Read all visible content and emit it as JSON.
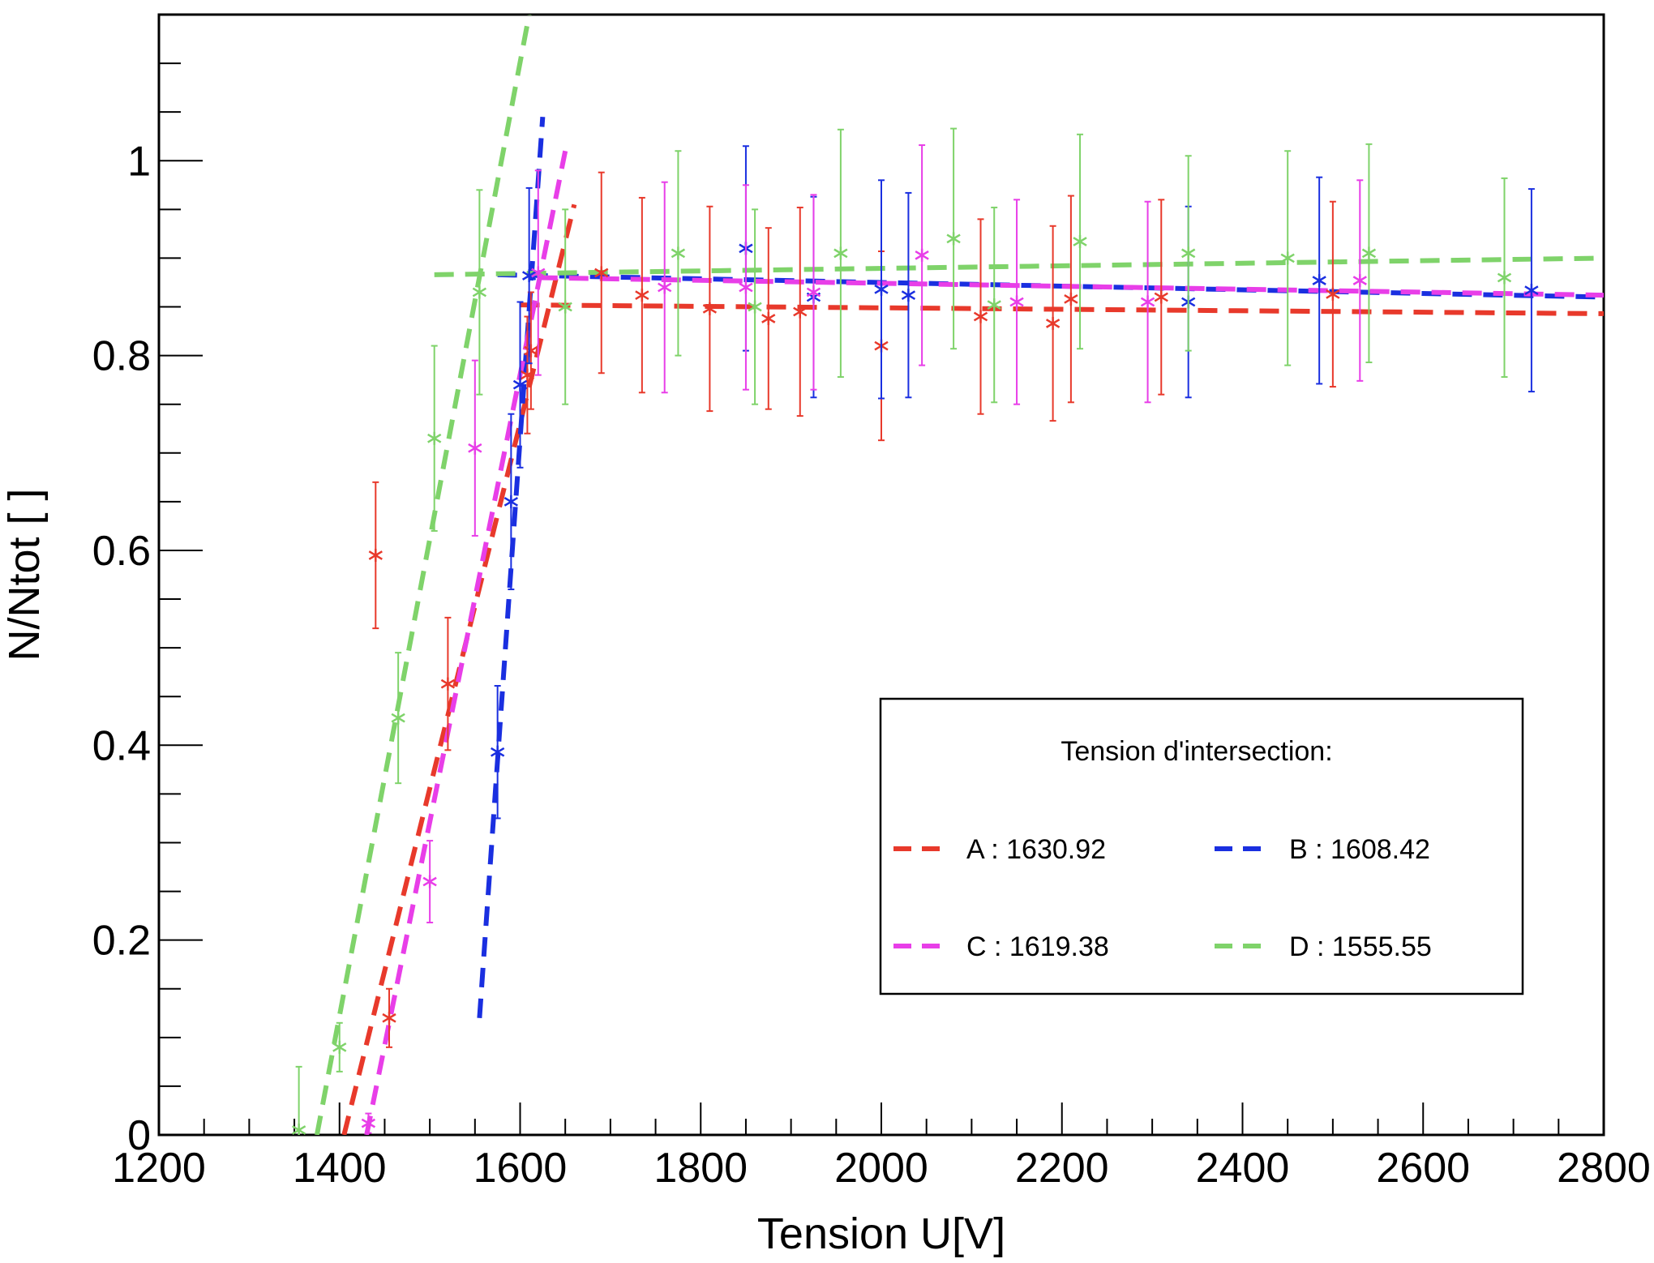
{
  "chart_data": {
    "type": "scatter",
    "title": "",
    "xlabel": "Tension U[V]",
    "ylabel": "N/Ntot [ ]",
    "xlim": [
      1200,
      2800
    ],
    "ylim": [
      0,
      1.15
    ],
    "x_ticks": [
      "1200",
      "1400",
      "1600",
      "1800",
      "2000",
      "2200",
      "2400",
      "2600",
      "2800"
    ],
    "y_ticks": [
      "0",
      "0.2",
      "0.4",
      "0.6",
      "0.8",
      "1"
    ],
    "grid": false,
    "legend": {
      "placement": "bottom-right",
      "title": "Tension d'intersection:",
      "entries": [
        {
          "label": "A : 1630.92",
          "color": "#e8392b"
        },
        {
          "label": "B : 1608.42",
          "color": "#1a2fe0"
        },
        {
          "label": "C : 1619.38",
          "color": "#e83ee8"
        },
        {
          "label": "D : 1555.55",
          "color": "#7fd36a"
        }
      ]
    },
    "series": [
      {
        "id": "A",
        "color": "#e8392b",
        "points": [
          {
            "x": 1440,
            "y": 0.595,
            "err": 0.075
          },
          {
            "x": 1455,
            "y": 0.12,
            "err": 0.03
          },
          {
            "x": 1520,
            "y": 0.463,
            "err": 0.068
          },
          {
            "x": 1608,
            "y": 0.78,
            "err": 0.06
          },
          {
            "x": 1612,
            "y": 0.805,
            "err": 0.06
          },
          {
            "x": 1690,
            "y": 0.885,
            "err": 0.103
          },
          {
            "x": 1735,
            "y": 0.862,
            "err": 0.1
          },
          {
            "x": 1810,
            "y": 0.848,
            "err": 0.105
          },
          {
            "x": 1875,
            "y": 0.838,
            "err": 0.093
          },
          {
            "x": 1910,
            "y": 0.845,
            "err": 0.107
          },
          {
            "x": 2000,
            "y": 0.81,
            "err": 0.097
          },
          {
            "x": 2110,
            "y": 0.84,
            "err": 0.1
          },
          {
            "x": 2190,
            "y": 0.833,
            "err": 0.1
          },
          {
            "x": 2210,
            "y": 0.858,
            "err": 0.106
          },
          {
            "x": 2310,
            "y": 0.86,
            "err": 0.1
          },
          {
            "x": 2500,
            "y": 0.863,
            "err": 0.095
          }
        ],
        "fit_rise": {
          "x": [
            1405,
            1660
          ],
          "y": [
            0.0,
            0.955
          ]
        },
        "fit_plateau": {
          "x": [
            1600,
            2800
          ],
          "y": [
            0.852,
            0.843
          ]
        }
      },
      {
        "id": "B",
        "color": "#1a2fe0",
        "points": [
          {
            "x": 1575,
            "y": 0.393,
            "err": 0.068
          },
          {
            "x": 1590,
            "y": 0.65,
            "err": 0.09
          },
          {
            "x": 1600,
            "y": 0.77,
            "err": 0.085
          },
          {
            "x": 1610,
            "y": 0.882,
            "err": 0.09
          },
          {
            "x": 1850,
            "y": 0.91,
            "err": 0.105
          },
          {
            "x": 1925,
            "y": 0.86,
            "err": 0.103
          },
          {
            "x": 2000,
            "y": 0.868,
            "err": 0.112
          },
          {
            "x": 2030,
            "y": 0.862,
            "err": 0.105
          },
          {
            "x": 2340,
            "y": 0.855,
            "err": 0.098
          },
          {
            "x": 2485,
            "y": 0.877,
            "err": 0.106
          },
          {
            "x": 2720,
            "y": 0.867,
            "err": 0.104
          }
        ],
        "fit_rise": {
          "x": [
            1555,
            1625
          ],
          "y": [
            0.12,
            1.045
          ]
        },
        "fit_plateau": {
          "x": [
            1575,
            2800
          ],
          "y": [
            0.883,
            0.86
          ]
        }
      },
      {
        "id": "C",
        "color": "#e83ee8",
        "points": [
          {
            "x": 1432,
            "y": 0.012,
            "err": 0.01
          },
          {
            "x": 1500,
            "y": 0.26,
            "err": 0.042
          },
          {
            "x": 1550,
            "y": 0.705,
            "err": 0.09
          },
          {
            "x": 1620,
            "y": 0.885,
            "err": 0.105
          },
          {
            "x": 1760,
            "y": 0.87,
            "err": 0.108
          },
          {
            "x": 1850,
            "y": 0.87,
            "err": 0.105
          },
          {
            "x": 1925,
            "y": 0.865,
            "err": 0.1
          },
          {
            "x": 2045,
            "y": 0.903,
            "err": 0.113
          },
          {
            "x": 2150,
            "y": 0.855,
            "err": 0.105
          },
          {
            "x": 2295,
            "y": 0.855,
            "err": 0.103
          },
          {
            "x": 2530,
            "y": 0.877,
            "err": 0.103
          }
        ],
        "fit_rise": {
          "x": [
            1430,
            1650
          ],
          "y": [
            0.0,
            1.01
          ]
        },
        "fit_plateau": {
          "x": [
            1620,
            2800
          ],
          "y": [
            0.88,
            0.862
          ]
        }
      },
      {
        "id": "D",
        "color": "#7fd36a",
        "points": [
          {
            "x": 1355,
            "y": 0.005,
            "err": 0.065
          },
          {
            "x": 1400,
            "y": 0.09,
            "err": 0.025
          },
          {
            "x": 1465,
            "y": 0.428,
            "err": 0.067
          },
          {
            "x": 1505,
            "y": 0.715,
            "err": 0.095
          },
          {
            "x": 1555,
            "y": 0.865,
            "err": 0.105
          },
          {
            "x": 1650,
            "y": 0.85,
            "err": 0.1
          },
          {
            "x": 1775,
            "y": 0.905,
            "err": 0.105
          },
          {
            "x": 1860,
            "y": 0.85,
            "err": 0.1
          },
          {
            "x": 1955,
            "y": 0.905,
            "err": 0.127
          },
          {
            "x": 2080,
            "y": 0.92,
            "err": 0.113
          },
          {
            "x": 2125,
            "y": 0.852,
            "err": 0.1
          },
          {
            "x": 2220,
            "y": 0.917,
            "err": 0.11
          },
          {
            "x": 2340,
            "y": 0.905,
            "err": 0.1
          },
          {
            "x": 2450,
            "y": 0.9,
            "err": 0.11
          },
          {
            "x": 2540,
            "y": 0.905,
            "err": 0.112
          },
          {
            "x": 2690,
            "y": 0.88,
            "err": 0.102
          }
        ],
        "fit_rise": {
          "x": [
            1375,
            1610
          ],
          "y": [
            0.0,
            1.15
          ]
        },
        "fit_plateau": {
          "x": [
            1505,
            2800
          ],
          "y": [
            0.883,
            0.9
          ]
        }
      }
    ]
  }
}
